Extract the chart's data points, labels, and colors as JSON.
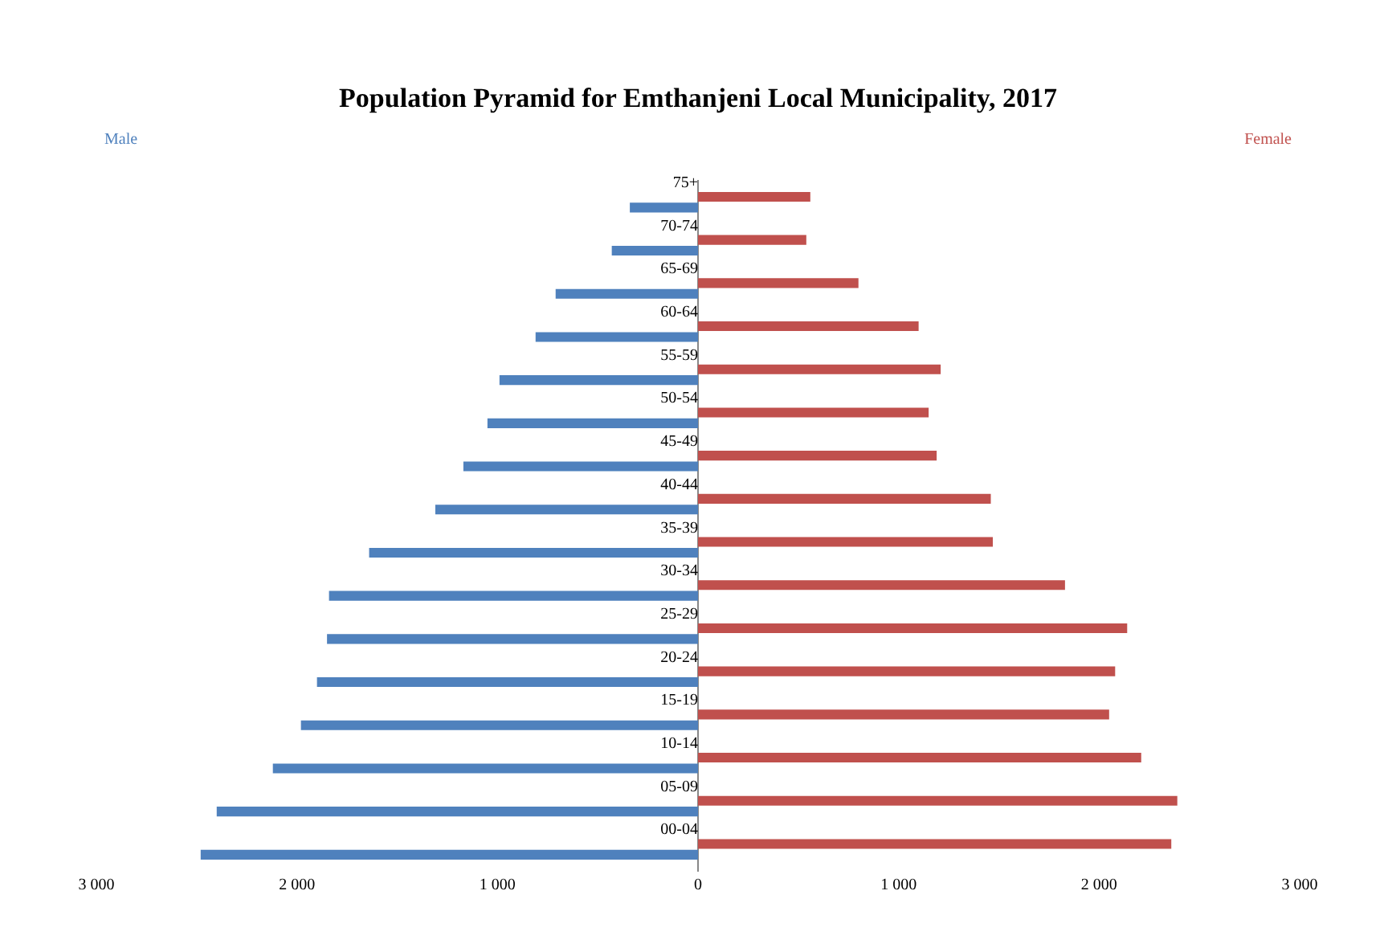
{
  "chart_data": {
    "type": "bar",
    "orientation": "horizontal",
    "title": "Population Pyramid for Emthanjeni Local Municipality, 2017",
    "categories": [
      "75+",
      "70-74",
      "65-69",
      "60-64",
      "55-59",
      "50-54",
      "45-49",
      "40-44",
      "35-39",
      "30-34",
      "25-29",
      "20-24",
      "15-19",
      "10-14",
      "05-09",
      "00-04"
    ],
    "series": [
      {
        "name": "Female",
        "color": "#c0504d",
        "values": [
          560,
          540,
          800,
          1100,
          1210,
          1150,
          1190,
          1460,
          1470,
          1830,
          2140,
          2080,
          2050,
          2210,
          2390,
          2360
        ]
      },
      {
        "name": "Male",
        "color": "#4f81bd",
        "values": [
          -340,
          -430,
          -710,
          -810,
          -990,
          -1050,
          -1170,
          -1310,
          -1640,
          -1840,
          -1850,
          -1900,
          -1980,
          -2120,
          -2400,
          -2480
        ]
      }
    ],
    "xlim": [
      -3000,
      3000
    ],
    "xticks": [
      {
        "value": -3000,
        "label": "3 000"
      },
      {
        "value": -2000,
        "label": "2 000"
      },
      {
        "value": -1000,
        "label": "1 000"
      },
      0,
      {
        "value": 1000,
        "label": "1 000"
      },
      {
        "value": 2000,
        "label": "2 000"
      },
      {
        "value": 3000,
        "label": "3 000"
      }
    ],
    "grid": false,
    "legend": false
  }
}
